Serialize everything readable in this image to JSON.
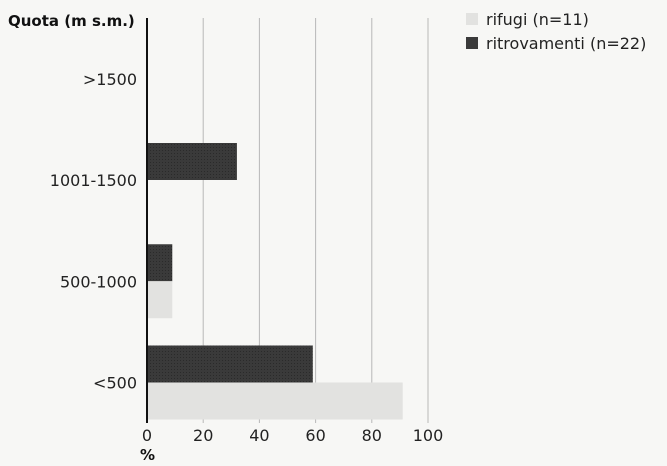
{
  "chart_data": {
    "type": "bar",
    "orientation": "horizontal",
    "ylabel": "Quota (m s.m.)",
    "xlabel": "%",
    "categories": [
      ">1500",
      "1001-1500",
      "500-1000",
      "<500"
    ],
    "series": [
      {
        "name": "rifugi (n=11)",
        "values": [
          0,
          0,
          9,
          91
        ],
        "color": "#e2e2e0"
      },
      {
        "name": "ritrovamenti (n=22)",
        "values": [
          0,
          32,
          9,
          59
        ],
        "color": "#3a3a3a"
      }
    ],
    "xlim": [
      0,
      100
    ],
    "xticks": [
      0,
      20,
      40,
      60,
      80,
      100
    ],
    "grid": true,
    "legend_position": "top-right"
  }
}
